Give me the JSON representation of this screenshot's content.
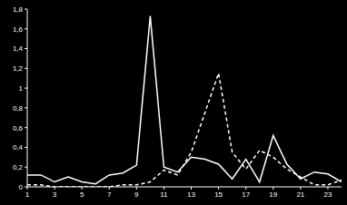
{
  "chart_data": {
    "type": "line",
    "x": [
      1,
      2,
      3,
      4,
      5,
      6,
      7,
      8,
      9,
      10,
      11,
      12,
      13,
      14,
      15,
      16,
      17,
      18,
      19,
      20,
      21,
      22,
      23,
      24
    ],
    "xlim": [
      1,
      24
    ],
    "xticks": [
      1,
      3,
      5,
      7,
      9,
      11,
      13,
      15,
      17,
      19,
      21,
      23
    ],
    "ylim": [
      0,
      1.8
    ],
    "yticks": [
      0,
      {
        "value": 0.2,
        "label": "0,2"
      },
      {
        "value": 0.4,
        "label": "0,4"
      },
      {
        "value": 0.6,
        "label": "0,6"
      },
      {
        "value": 0.8,
        "label": "0,8"
      },
      1,
      {
        "value": 1.2,
        "label": "1,2"
      },
      {
        "value": 1.4,
        "label": "1,4"
      },
      {
        "value": 1.6,
        "label": "1,6"
      },
      {
        "value": 1.8,
        "label": "1,8"
      }
    ],
    "grid": false,
    "series": [
      {
        "color": "#ffffff",
        "line_style": "solid",
        "values": [
          0.12,
          0.12,
          0.05,
          0.1,
          0.05,
          0.03,
          0.12,
          0.14,
          0.22,
          1.73,
          0.2,
          0.15,
          0.3,
          0.28,
          0.23,
          0.08,
          0.28,
          0.05,
          0.52,
          0.23,
          0.08,
          0.15,
          0.13,
          0.05
        ]
      },
      {
        "color": "#ffffff",
        "line_style": "dashed",
        "values": [
          0.02,
          0.02,
          0,
          0,
          0,
          0,
          0,
          0.02,
          0.02,
          0.05,
          0.17,
          0.12,
          0.35,
          0.75,
          1.15,
          0.35,
          0.18,
          0.37,
          0.3,
          0.18,
          0.1,
          0.02,
          0.02,
          0.07
        ]
      }
    ]
  }
}
